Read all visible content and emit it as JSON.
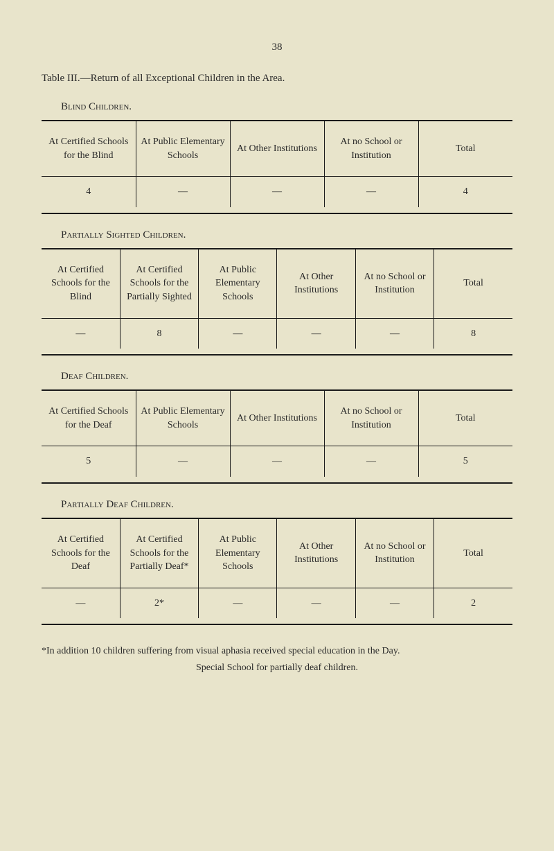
{
  "page_number": "38",
  "title": "Table III.—Return of all Exceptional Children in the Area.",
  "sections": {
    "blind": {
      "heading": "Blind Children.",
      "columns": [
        "At Certified Schools for the Blind",
        "At Public Elementary Schools",
        "At Other Institutions",
        "At no School or Institution",
        "Total"
      ],
      "row": [
        "4",
        "—",
        "—",
        "—",
        "4"
      ]
    },
    "partially_sighted": {
      "heading": "Partially Sighted Children.",
      "columns": [
        "At Certified Schools for the Blind",
        "At Certified Schools for the Partially Sighted",
        "At Public Elementary Schools",
        "At Other Institutions",
        "At no School or Institution",
        "Total"
      ],
      "row": [
        "—",
        "8",
        "—",
        "—",
        "—",
        "8"
      ]
    },
    "deaf": {
      "heading": "Deaf Children.",
      "columns": [
        "At Certified Schools for the Deaf",
        "At Public Elementary Schools",
        "At Other Institutions",
        "At no School or Institution",
        "Total"
      ],
      "row": [
        "5",
        "—",
        "—",
        "—",
        "5"
      ]
    },
    "partially_deaf": {
      "heading": "Partially Deaf Children.",
      "columns": [
        "At Certified Schools for the Deaf",
        "At Certified Schools for the Partially Deaf*",
        "At Public Elementary Schools",
        "At Other Institutions",
        "At no School or Institution",
        "Total"
      ],
      "row": [
        "—",
        "2*",
        "—",
        "—",
        "—",
        "2"
      ]
    }
  },
  "footnote_line1": "*In addition 10 children suffering from visual aphasia received special education in the Day.",
  "footnote_line2": "Special School for partially deaf children."
}
